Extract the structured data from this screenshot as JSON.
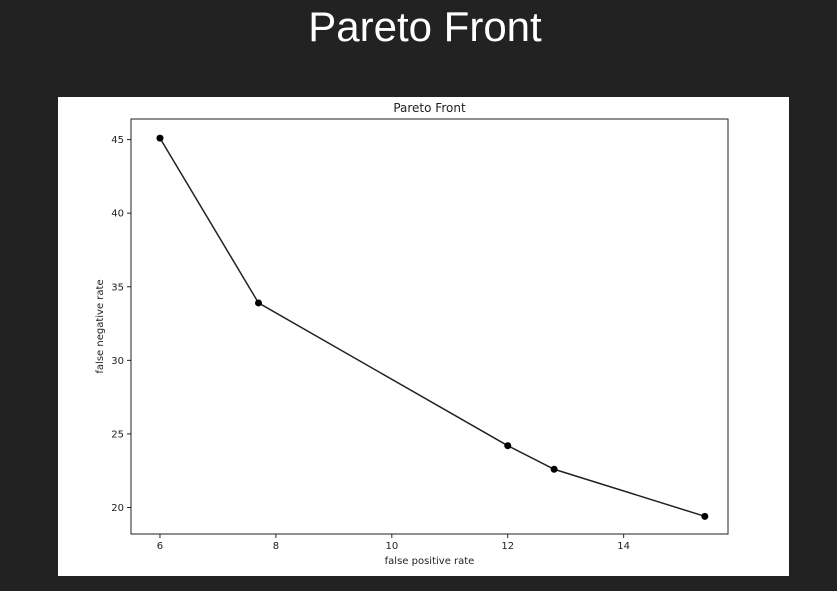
{
  "page": {
    "title": "Pareto Front"
  },
  "colors": {
    "background": "#222222",
    "panel": "#ffffff",
    "line": "#222222",
    "marker": "#000000",
    "title_text": "#ffffff"
  },
  "chart_data": {
    "type": "line",
    "title": "Pareto Front",
    "xlabel": "false positive rate",
    "ylabel": "false negative rate",
    "xlim": [
      5.5,
      15.8
    ],
    "ylim": [
      18.2,
      46.4
    ],
    "xticks": [
      6,
      8,
      10,
      12,
      14
    ],
    "yticks": [
      20,
      25,
      30,
      35,
      40,
      45
    ],
    "grid": false,
    "markers": "circle",
    "series": [
      {
        "x": [
          6.0,
          7.7,
          12.0,
          12.8,
          15.4
        ],
        "y": [
          45.1,
          33.9,
          24.2,
          22.6,
          19.4
        ]
      }
    ]
  }
}
